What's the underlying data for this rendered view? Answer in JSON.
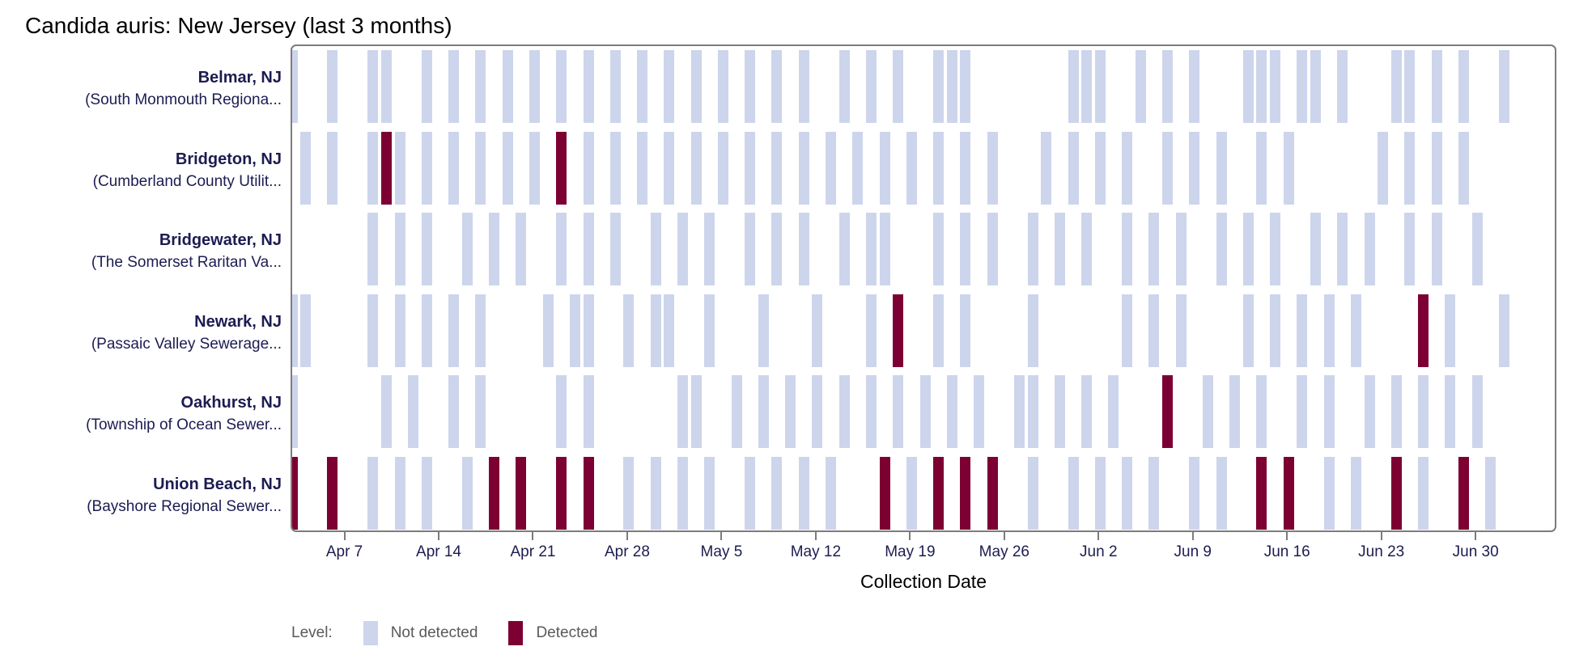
{
  "title": "Candida auris: New Jersey (last 3 months)",
  "colors": {
    "not_detected": "#cdd5ec",
    "detected": "#7d0032",
    "label_navy": "#1c1c52",
    "axis_gray": "#7c7c7c",
    "legend_text": "#595959"
  },
  "legend": {
    "label": "Level:",
    "items": [
      {
        "label": "Not detected",
        "color_key": "not_detected"
      },
      {
        "label": "Detected",
        "color_key": "detected"
      }
    ]
  },
  "x_axis": {
    "label": "Collection Date",
    "ticks": [
      "Apr 7",
      "Apr 14",
      "Apr 21",
      "Apr 28",
      "May 5",
      "May 12",
      "May 19",
      "May 26",
      "Jun 2",
      "Jun 9",
      "Jun 16",
      "Jun 23",
      "Jun 30"
    ],
    "range_start": "Apr 3",
    "range_end": "Jul 6"
  },
  "chart_data": {
    "type": "heatmap",
    "description": "Wastewater sampling timeline; one cell per collection date per site",
    "status_values": [
      "Not detected",
      "Detected"
    ],
    "rows": [
      {
        "location": "Belmar, NJ",
        "facility": "(South Monmouth Regiona...",
        "not_detected": [
          "Apr 3",
          "Apr 6",
          "Apr 9",
          "Apr 10",
          "Apr 13",
          "Apr 15",
          "Apr 17",
          "Apr 19",
          "Apr 21",
          "Apr 23",
          "Apr 25",
          "Apr 27",
          "Apr 29",
          "May 1",
          "May 3",
          "May 5",
          "May 7",
          "May 9",
          "May 11",
          "May 14",
          "May 16",
          "May 18",
          "May 21",
          "May 22",
          "May 23",
          "May 31",
          "Jun 1",
          "Jun 2",
          "Jun 5",
          "Jun 7",
          "Jun 9",
          "Jun 13",
          "Jun 14",
          "Jun 15",
          "Jun 17",
          "Jun 18",
          "Jun 20",
          "Jun 24",
          "Jun 25",
          "Jun 27",
          "Jun 29",
          "Jul 2"
        ],
        "detected": []
      },
      {
        "location": "Bridgeton, NJ",
        "facility": "(Cumberland County Utilit...",
        "not_detected": [
          "Apr 4",
          "Apr 6",
          "Apr 9",
          "Apr 11",
          "Apr 13",
          "Apr 15",
          "Apr 17",
          "Apr 19",
          "Apr 21",
          "Apr 25",
          "Apr 27",
          "Apr 29",
          "May 1",
          "May 3",
          "May 5",
          "May 7",
          "May 9",
          "May 11",
          "May 13",
          "May 15",
          "May 17",
          "May 19",
          "May 21",
          "May 23",
          "May 25",
          "May 29",
          "May 31",
          "Jun 2",
          "Jun 4",
          "Jun 7",
          "Jun 9",
          "Jun 11",
          "Jun 14",
          "Jun 16",
          "Jun 23",
          "Jun 25",
          "Jun 27",
          "Jun 29"
        ],
        "detected": [
          "Apr 10",
          "Apr 23"
        ]
      },
      {
        "location": "Bridgewater, NJ",
        "facility": "(The Somerset Raritan Va...",
        "not_detected": [
          "Apr 9",
          "Apr 11",
          "Apr 13",
          "Apr 16",
          "Apr 18",
          "Apr 20",
          "Apr 23",
          "Apr 25",
          "Apr 27",
          "Apr 30",
          "May 2",
          "May 4",
          "May 7",
          "May 9",
          "May 11",
          "May 14",
          "May 16",
          "May 17",
          "May 21",
          "May 23",
          "May 25",
          "May 28",
          "May 30",
          "Jun 1",
          "Jun 4",
          "Jun 6",
          "Jun 8",
          "Jun 11",
          "Jun 13",
          "Jun 15",
          "Jun 18",
          "Jun 20",
          "Jun 22",
          "Jun 25",
          "Jun 27",
          "Jun 30"
        ],
        "detected": []
      },
      {
        "location": "Newark, NJ",
        "facility": "(Passaic Valley Sewerage...",
        "not_detected": [
          "Apr 3",
          "Apr 4",
          "Apr 9",
          "Apr 11",
          "Apr 13",
          "Apr 15",
          "Apr 17",
          "Apr 22",
          "Apr 24",
          "Apr 25",
          "Apr 28",
          "Apr 30",
          "May 1",
          "May 4",
          "May 8",
          "May 12",
          "May 16",
          "May 21",
          "May 23",
          "May 28",
          "Jun 4",
          "Jun 6",
          "Jun 8",
          "Jun 13",
          "Jun 15",
          "Jun 17",
          "Jun 19",
          "Jun 21",
          "Jun 28",
          "Jul 2"
        ],
        "detected": [
          "May 18",
          "Jun 26"
        ]
      },
      {
        "location": "Oakhurst, NJ",
        "facility": "(Township of Ocean Sewer...",
        "not_detected": [
          "Apr 3",
          "Apr 10",
          "Apr 12",
          "Apr 15",
          "Apr 17",
          "Apr 23",
          "Apr 25",
          "May 2",
          "May 3",
          "May 6",
          "May 8",
          "May 10",
          "May 12",
          "May 14",
          "May 16",
          "May 18",
          "May 20",
          "May 22",
          "May 24",
          "May 27",
          "May 28",
          "May 30",
          "Jun 1",
          "Jun 3",
          "Jun 10",
          "Jun 12",
          "Jun 14",
          "Jun 17",
          "Jun 19",
          "Jun 22",
          "Jun 24",
          "Jun 26",
          "Jun 28",
          "Jun 30"
        ],
        "detected": [
          "Jun 7"
        ]
      },
      {
        "location": "Union Beach, NJ",
        "facility": "(Bayshore Regional Sewer...",
        "not_detected": [
          "Apr 9",
          "Apr 11",
          "Apr 13",
          "Apr 16",
          "Apr 28",
          "Apr 30",
          "May 2",
          "May 4",
          "May 7",
          "May 9",
          "May 11",
          "May 13",
          "May 19",
          "May 28",
          "May 31",
          "Jun 2",
          "Jun 4",
          "Jun 6",
          "Jun 9",
          "Jun 11",
          "Jun 19",
          "Jun 21",
          "Jun 26",
          "Jul 1"
        ],
        "detected": [
          "Apr 3",
          "Apr 6",
          "Apr 18",
          "Apr 20",
          "Apr 23",
          "Apr 25",
          "May 17",
          "May 21",
          "May 23",
          "May 25",
          "Jun 14",
          "Jun 16",
          "Jun 24",
          "Jun 29"
        ]
      }
    ]
  }
}
